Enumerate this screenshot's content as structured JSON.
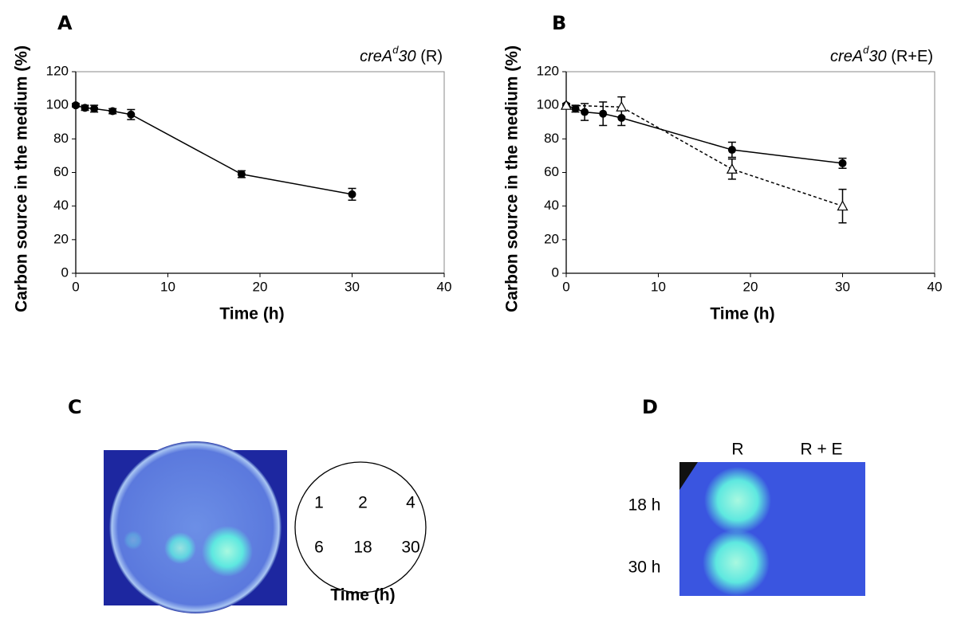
{
  "chart_data": [
    {
      "type": "line",
      "panel_label": "A",
      "title_gene": "creA",
      "title_superscript": "d",
      "title_suffix": "30",
      "title_condition": "(R)",
      "xlabel": "Time (h)",
      "ylabel": "Carbon source in the medium (%)",
      "xlim": [
        0,
        40
      ],
      "xticks": [
        0,
        10,
        20,
        30,
        40
      ],
      "ylim": [
        0,
        120
      ],
      "yticks": [
        0,
        20,
        40,
        60,
        80,
        100,
        120
      ],
      "series": [
        {
          "color": "#000000",
          "marker": "circle",
          "dashed": false,
          "x": [
            0,
            1,
            2,
            4,
            6,
            18,
            30
          ],
          "values": [
            100,
            98.5,
            98,
            96.5,
            94.5,
            59,
            47
          ],
          "errors": [
            1,
            1.5,
            2,
            1.5,
            3,
            2,
            3.5
          ]
        }
      ]
    },
    {
      "type": "line",
      "panel_label": "B",
      "title_gene": "creA",
      "title_superscript": "d",
      "title_suffix": "30",
      "title_condition": "(R+E)",
      "xlabel": "Time (h)",
      "ylabel": "Carbon source in the medium (%)",
      "xlim": [
        0,
        40
      ],
      "xticks": [
        0,
        10,
        20,
        30,
        40
      ],
      "ylim": [
        0,
        120
      ],
      "yticks": [
        0,
        20,
        40,
        60,
        80,
        100,
        120
      ],
      "series": [
        {
          "color": "#000000",
          "marker": "circle",
          "dashed": false,
          "x": [
            0,
            1,
            2,
            4,
            6,
            18,
            30
          ],
          "values": [
            100,
            98,
            96,
            95,
            92.5,
            73.5,
            65.5
          ],
          "errors": [
            1,
            2,
            5,
            7,
            4.5,
            4.5,
            3
          ]
        },
        {
          "color": "#000000",
          "marker": "triangle",
          "dashed": true,
          "x": [
            0,
            6,
            18,
            30
          ],
          "values": [
            100,
            99,
            62,
            40
          ],
          "errors": [
            1,
            6,
            6,
            10
          ]
        }
      ]
    }
  ],
  "panel_c": {
    "label": "C",
    "plate_labels": [
      "1",
      "2",
      "4",
      "6",
      "18",
      "30"
    ],
    "xlabel": "Time (h)"
  },
  "panel_d": {
    "label": "D",
    "columns": [
      "R",
      "R + E"
    ],
    "rows": [
      "18 h",
      "30 h"
    ]
  }
}
